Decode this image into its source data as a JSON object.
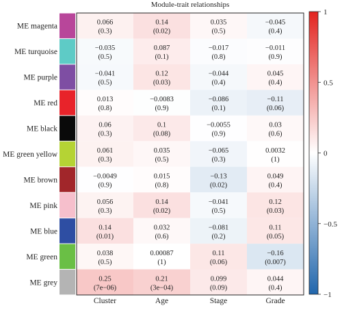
{
  "chart_data": {
    "type": "heatmap",
    "title": "Module-trait relationships",
    "columns": [
      "Cluster",
      "Age",
      "Stage",
      "Grade"
    ],
    "rows": [
      {
        "name": "ME magenta",
        "color": "#b8469a",
        "values": [
          0.066,
          0.14,
          0.035,
          -0.045
        ],
        "pvalues": [
          "(0.3)",
          "(0.02)",
          "(0.5)",
          "(0.4)"
        ],
        "labels": [
          "0.066",
          "0.14",
          "0.035",
          "−0.045"
        ]
      },
      {
        "name": "ME turquoise",
        "color": "#5ecbc6",
        "values": [
          -0.035,
          0.087,
          -0.017,
          -0.011
        ],
        "pvalues": [
          "(0.5)",
          "(0.1)",
          "(0.8)",
          "(0.9)"
        ],
        "labels": [
          "−0.035",
          "0.087",
          "−0.017",
          "−0.011"
        ]
      },
      {
        "name": "ME purple",
        "color": "#7e4ea3",
        "values": [
          -0.041,
          0.12,
          -0.044,
          0.045
        ],
        "pvalues": [
          "(0.5)",
          "(0.03)",
          "(0.4)",
          "(0.4)"
        ],
        "labels": [
          "−0.041",
          "0.12",
          "−0.044",
          "0.045"
        ]
      },
      {
        "name": "ME red",
        "color": "#e8232a",
        "values": [
          0.013,
          -0.0083,
          -0.086,
          -0.11
        ],
        "pvalues": [
          "(0.8)",
          "(0.9)",
          "(0.1)",
          "(0.06)"
        ],
        "labels": [
          "0.013",
          "−0.0083",
          "−0.086",
          "−0.11"
        ]
      },
      {
        "name": "ME black",
        "color": "#0a0a0a",
        "values": [
          0.06,
          0.1,
          -0.0055,
          0.03
        ],
        "pvalues": [
          "(0.3)",
          "(0.08)",
          "(0.9)",
          "(0.6)"
        ],
        "labels": [
          "0.06",
          "0.1",
          "−0.0055",
          "0.03"
        ]
      },
      {
        "name": "ME green yellow",
        "color": "#b5d334",
        "values": [
          0.061,
          0.035,
          -0.065,
          0.0032
        ],
        "pvalues": [
          "(0.3)",
          "(0.5)",
          "(0.3)",
          "(1)"
        ],
        "labels": [
          "0.061",
          "0.035",
          "−0.065",
          "0.0032"
        ]
      },
      {
        "name": "ME brown",
        "color": "#a1262a",
        "values": [
          -0.0049,
          0.015,
          -0.13,
          0.049
        ],
        "pvalues": [
          "(0.9)",
          "(0.8)",
          "(0.02)",
          "(0.4)"
        ],
        "labels": [
          "−0.0049",
          "0.015",
          "−0.13",
          "0.049"
        ]
      },
      {
        "name": "ME pink",
        "color": "#f6bfcc",
        "values": [
          0.056,
          0.14,
          -0.041,
          0.12
        ],
        "pvalues": [
          "(0.3)",
          "(0.02)",
          "(0.5)",
          "(0.03)"
        ],
        "labels": [
          "0.056",
          "0.14",
          "−0.041",
          "0.12"
        ]
      },
      {
        "name": "ME blue",
        "color": "#2e4ea3",
        "values": [
          0.14,
          0.032,
          -0.081,
          0.11
        ],
        "pvalues": [
          "(0.01)",
          "(0.6)",
          "(0.2)",
          "(0.05)"
        ],
        "labels": [
          "0.14",
          "0.032",
          "−0.081",
          "0.11"
        ]
      },
      {
        "name": "ME green",
        "color": "#6abf45",
        "values": [
          0.038,
          0.00087,
          0.11,
          -0.16
        ],
        "pvalues": [
          "(0.5)",
          "(1)",
          "(0.06)",
          "(0.007)"
        ],
        "labels": [
          "0.038",
          "0.00087",
          "0.11",
          "−0.16"
        ]
      },
      {
        "name": "ME grey",
        "color": "#b4b4b4",
        "values": [
          0.25,
          0.21,
          0.099,
          0.044
        ],
        "pvalues": [
          "(7e−06)",
          "(3e−04)",
          "(0.09)",
          "(0.4)"
        ],
        "labels": [
          "0.25",
          "0.21",
          "0.099",
          "0.044"
        ]
      }
    ],
    "colorbar": {
      "range": [
        -1,
        1
      ],
      "ticks": [
        1,
        0.5,
        0,
        -0.5,
        -1
      ],
      "tick_labels": [
        "1",
        "0.5",
        "0",
        "−0.5",
        "−1"
      ],
      "colors": {
        "negative": "#2166ac",
        "zero": "#ffffff",
        "positive": "#e3241f"
      }
    }
  }
}
